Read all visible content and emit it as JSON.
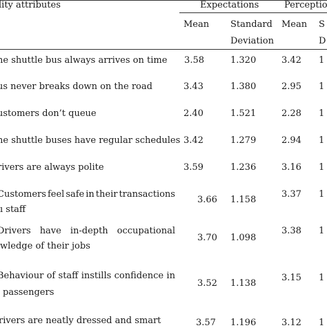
{
  "header": {
    "attr": "lity attributes",
    "expectations": "Expectations",
    "perceptions": "Perceptio",
    "mean_e": "Mean",
    "sd_e_line1": "Standard",
    "sd_e_line2": "Deviation",
    "mean_p": "Mean",
    "sd_p_line1": "S",
    "sd_p_line2": "D"
  },
  "rows": [
    {
      "attr1": "he shuttle bus always arrives on time",
      "attr2": "",
      "em": "3.58",
      "esd": "1.320",
      "pm": "3.42",
      "psd": "1"
    },
    {
      "attr1": "us never breaks down on the road",
      "attr2": "",
      "em": "3.43",
      "esd": "1.380",
      "pm": "2.95",
      "psd": "1"
    },
    {
      "attr1": "ustomers don’t queue",
      "attr2": "",
      "em": "2.40",
      "esd": "1.521",
      "pm": "2.28",
      "psd": "1"
    },
    {
      "attr1": "he shuttle buses have regular schedules",
      "attr2": "",
      "em": "3.42",
      "esd": "1.279",
      "pm": "2.94",
      "psd": "1"
    },
    {
      "attr1": "rivers are always polite",
      "attr2": "",
      "em": "3.59",
      "esd": "1.236",
      "pm": "3.16",
      "psd": "1"
    },
    {
      "attr1": "Customers feel safe in their transactions",
      "attr2": "ı staff",
      "em": "3.66",
      "esd": "1.158",
      "pm": "3.37",
      "psd": "1"
    },
    {
      "attr1": "Drivers have in-depth occupational",
      "attr2": "wledge of their jobs",
      "em": "3.70",
      "esd": "1.098",
      "pm": "3.38",
      "psd": "1"
    },
    {
      "attr1": "Behaviour of staff instills confidence in",
      "attr2": "passengers",
      "em": "3.52",
      "esd": "1.138",
      "pm": "3.15",
      "psd": "1"
    },
    {
      "attr1": "rivers are neatly dressed and smart",
      "attr2": "",
      "em": "3.57",
      "esd": "1.196",
      "pm": "3.12",
      "psd": "1"
    }
  ]
}
